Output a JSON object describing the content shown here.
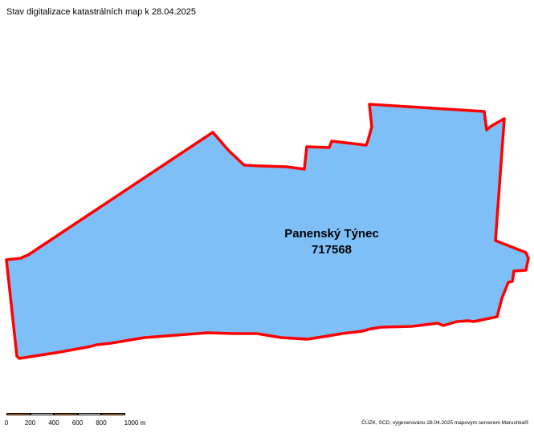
{
  "title": "Stav digitalizace katastrálních map k 28.04.2025",
  "parcel": {
    "name": "Panenský Týnec",
    "code": "717568",
    "fill_color": "#7fbff8",
    "outline_color": "#ff0000"
  },
  "scale_bar": {
    "ticks": [
      "0",
      "200",
      "400",
      "600",
      "800",
      "1000 m"
    ],
    "colors": [
      "#e07a1f",
      "#ffffff",
      "#e07a1f",
      "#ffffff",
      "#e07a1f"
    ]
  },
  "credit": "ČÚZK, SCD, vygenerováno 28.04.2025 mapovým serverem Marushka®"
}
